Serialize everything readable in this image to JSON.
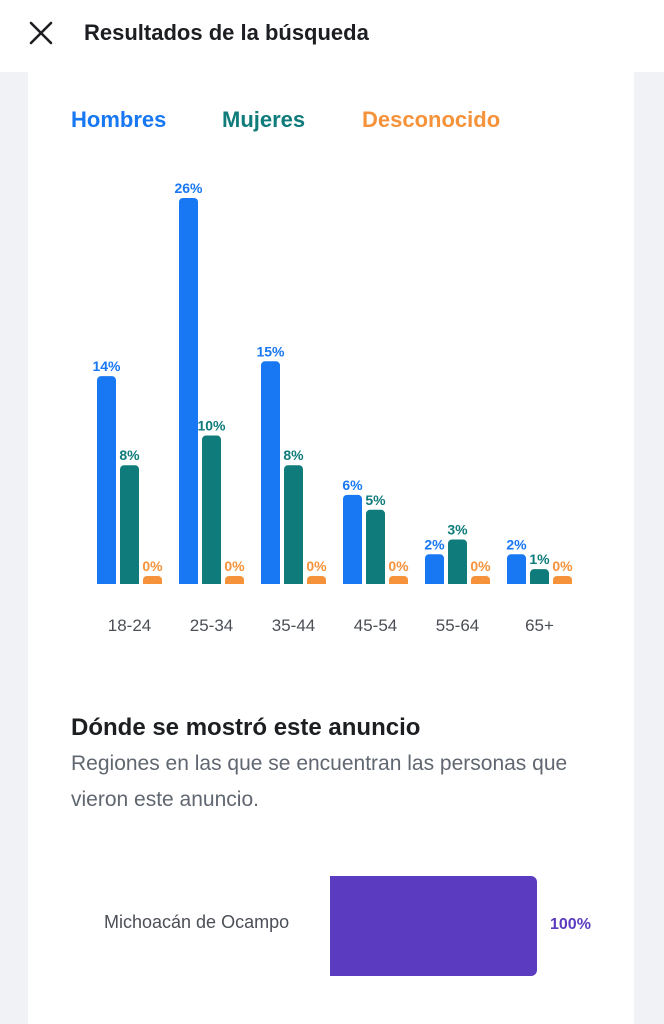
{
  "header": {
    "title": "Resultados de la búsqueda",
    "close_icon": "close-icon"
  },
  "legend": {
    "items": [
      {
        "label": "Hombres",
        "color": "#1877f2"
      },
      {
        "label": "Mujeres",
        "color": "#0f7b7b"
      },
      {
        "label": "Desconocido",
        "color": "#f5923a"
      }
    ]
  },
  "chart_data": {
    "type": "bar",
    "categories": [
      "18-24",
      "25-34",
      "35-44",
      "45-54",
      "55-64",
      "65+"
    ],
    "series": [
      {
        "name": "Hombres",
        "color": "#1877f2",
        "values": [
          14,
          26,
          15,
          6,
          2,
          2
        ],
        "labels": [
          "14%",
          "26%",
          "15%",
          "6%",
          "2%",
          "2%"
        ]
      },
      {
        "name": "Mujeres",
        "color": "#0f7b7b",
        "values": [
          8,
          10,
          8,
          5,
          3,
          1
        ],
        "labels": [
          "8%",
          "10%",
          "8%",
          "5%",
          "3%",
          "1%"
        ]
      },
      {
        "name": "Desconocido",
        "color": "#f5923a",
        "values": [
          0,
          0,
          0,
          0,
          0,
          0
        ],
        "labels": [
          "0%",
          "0%",
          "0%",
          "0%",
          "0%",
          "0%"
        ]
      }
    ],
    "ylim": [
      0,
      26
    ],
    "grid": false,
    "legend_position": "top"
  },
  "regions": {
    "title": "Dónde se mostró este anuncio",
    "subtitle": "Regiones en las que se encuentran las personas que vieron este anuncio.",
    "items": [
      {
        "name": "Michoacán de Ocampo",
        "value": 100,
        "label": "100%",
        "color": "#5b3cc0"
      }
    ]
  }
}
